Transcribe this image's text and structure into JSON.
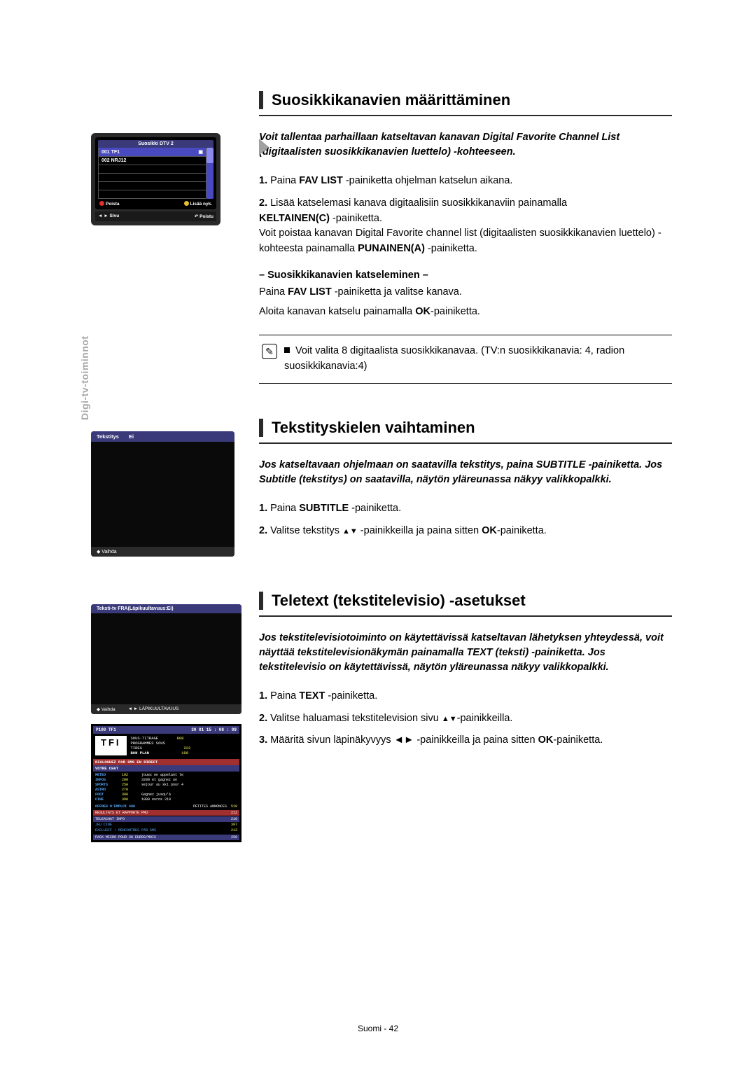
{
  "side_tab": "Digi-tv-toiminnot",
  "section1": {
    "heading": "Suosikkikanavien määrittäminen",
    "intro": "Voit tallentaa parhaillaan katseltavan kanavan Digital Favorite Channel List (digitaalisten suosikkikanavien luettelo) -kohteeseen.",
    "step1_num": "1.",
    "step1": " Paina FAV LIST -painiketta ohjelman katselun aikana.",
    "step2_num": "2.",
    "step2a": " Lisää katselemasi kanava digitaalisiin suosikkikanaviin painamalla ",
    "step2b": "KELTAINEN(C)",
    "step2c": " -painiketta.",
    "step2d": "Voit poistaa kanavan Digital Favorite channel list (digitaalisten suosikkikanavien luettelo) -kohteesta painamalla ",
    "step2e": "PUNAINEN(A)",
    "step2f": " -painiketta.",
    "subhead": "– Suosikkikanavien katseleminen –",
    "para1": "Paina FAV LIST -painiketta ja valitse kanava.",
    "para2": "Aloita kanavan katselu painamalla OK-painiketta.",
    "note": "Voit valita 8 digitaalista suosikkikanavaa. (TV:n suosikkikanavia: 4, radion suosikkikanavia:4)",
    "mockup": {
      "title": "Suosikki DTV 2",
      "row1": "001 TF1",
      "row2": "002 NRJ12",
      "foot_left": "Poista",
      "foot_right": "Lisää nyk.",
      "foot2_left": "Sivu",
      "foot2_right": "Poistu"
    }
  },
  "section2": {
    "heading": "Tekstityskielen vaihtaminen",
    "intro": "Jos katseltavaan ohjelmaan on saatavilla tekstitys, paina SUBTITLE -painiketta. Jos Subtitle (tekstitys) on saatavilla, näytön yläreunassa näkyy valikkopalkki.",
    "step1_num": "1.",
    "step1": " Paina SUBTITLE -painiketta.",
    "step2_num": "2.",
    "step2": " Valitse tekstitys ▲▼ -painikkeilla ja paina sitten OK-painiketta.",
    "mockup": {
      "header_l": "Tekstitys",
      "header_r": "Ei",
      "footer": "◆ Vaihda"
    }
  },
  "section3": {
    "heading": "Teletext (tekstitelevisio) -asetukset",
    "intro": "Jos tekstitelevisiotoiminto on käytettävissä katseltavan lähetyksen yhteydessä, voit näyttää tekstitelevisionäkymän painamalla TEXT (teksti) -painiketta. Jos tekstitelevisio on käytettävissä, näytön yläreunassa näkyy valikkopalkki.",
    "step1_num": "1.",
    "step1": " Paina TEXT -painiketta.",
    "step2_num": "2.",
    "step2": " Valitse haluamasi tekstitelevision sivu ▲▼-painikkeilla.",
    "step3_num": "3.",
    "step3a": " Määritä sivun läpinäkyvyys ◄► -painikkeilla ja paina sitten ",
    "step3b": "OK",
    "step3c": "-painiketta.",
    "mockup1": {
      "header": "Teksti-tv    FRA(Läpikuultavuus:Ei)",
      "footer_l": "◆ Vaihda",
      "footer_r": "◄ ► LÄPIKUULTAVUUS"
    },
    "mockup2": {
      "top_l": "P100    TF1",
      "top_r": "30  01   15 : 08 : 09",
      "logo": "TFI",
      "menu1": "SOUS-TITRAGE",
      "menu1v": "888",
      "menu2": "PROGRAMMES SOUS",
      "menu3": "TIRES",
      "menu3v": "222",
      "menu4": "BON PLAN",
      "menu4v": "199",
      "banner1": "DIALOGUEZ PAR SMS EN DIRECT",
      "banner2": "VOTRE CHAT",
      "grid": [
        [
          "METEO",
          "102",
          "jouez",
          "en",
          "appelant",
          "le"
        ],
        [
          "INFOS",
          "200",
          "3280",
          "et",
          "gagnez",
          "un"
        ],
        [
          "SPORTS",
          "250",
          "sejour",
          "au",
          "ski",
          "pour",
          "4"
        ],
        [
          "ASTRO",
          "270",
          "",
          "",
          "",
          ""
        ],
        [
          "FOOT",
          "300",
          "Gagnez",
          "jusqu'à",
          "",
          ""
        ],
        [
          "CINE",
          "390",
          "1000",
          "euros",
          "",
          "   219"
        ]
      ],
      "row_offres_l": "OFFRES D'EMPLOI 400",
      "row_offres_rlabel": "PETITES ANNONCES",
      "row_offres_r": "510",
      "bar1_l": "RESULTATS ET RAPPORTE PMU",
      "bar1_r": "212",
      "bar2_l": "TELEACHAT INFO",
      "bar2_r": "216",
      "row3_l": "JEU CINE",
      "row3_r": "397",
      "row4_l": "EXCLUSIF ! RENCONTRES PAR SMS",
      "row4_r": "213",
      "bar3_l": "PACK MICRO POUR 30 EUROS/MOIS",
      "bar3_r": "256"
    }
  },
  "footer": "Suomi - 42"
}
